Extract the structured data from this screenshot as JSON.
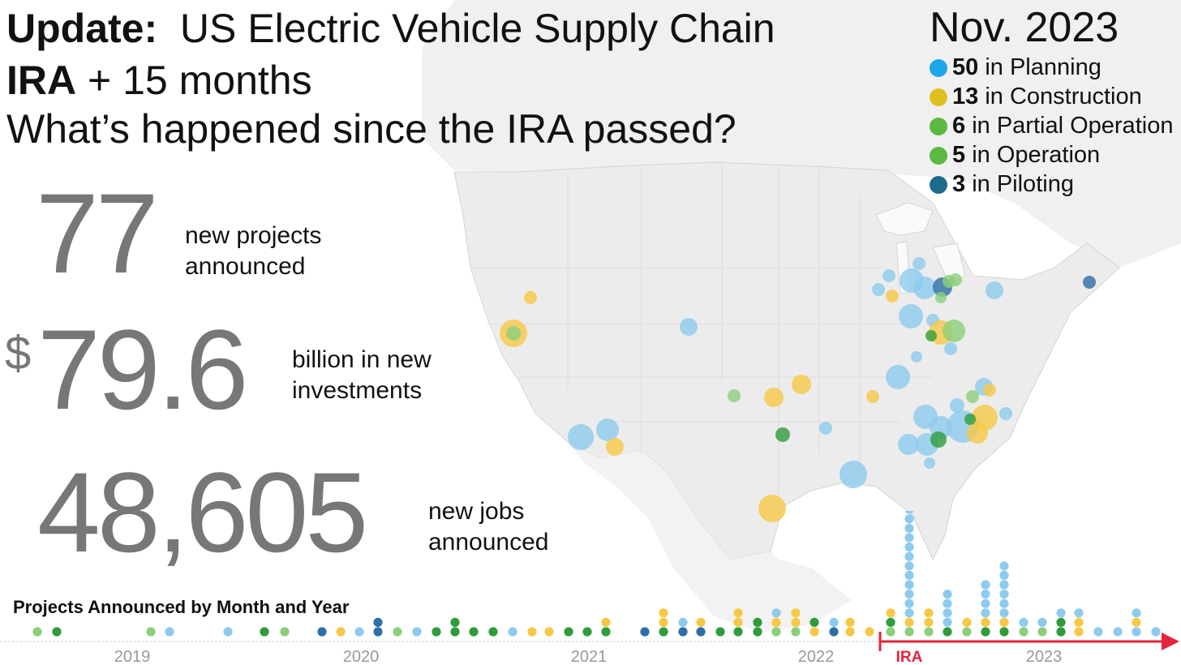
{
  "header": {
    "line1_bold": "Update:",
    "line1_rest": "US Electric Vehicle Supply Chain",
    "line2_bold": "IRA",
    "line2_rest": "+ 15 months",
    "line3": "What’s happened since the IRA passed?",
    "date": "Nov. 2023"
  },
  "legend": {
    "items": [
      {
        "count": "50",
        "label": "in Planning",
        "color": "#1ea7e8"
      },
      {
        "count": "13",
        "label": "in Construction",
        "color": "#e0c020"
      },
      {
        "count": "6",
        "label": "in Partial Operation",
        "color": "#5bb840"
      },
      {
        "count": "5",
        "label": "in Operation",
        "color": "#5bb840"
      },
      {
        "count": "3",
        "label": "in Piloting",
        "color": "#1e6a8c"
      }
    ]
  },
  "stats": {
    "projects_value": "77",
    "projects_label_1": "new projects",
    "projects_label_2": "announced",
    "currency_symbol": "$",
    "investment_value": "79.6",
    "investment_label_1": "billion in new",
    "investment_label_2": "investments",
    "jobs_value": "48,605",
    "jobs_label_1": "new jobs",
    "jobs_label_2": "announced"
  },
  "timeline": {
    "title": "Projects Announced by Month and Year",
    "years": [
      "2019",
      "2020",
      "2021",
      "2022",
      "2023"
    ],
    "ira_label": "IRA"
  },
  "colors": {
    "planning": "#8dcbee",
    "construction": "#f7c846",
    "partial": "#8ccf7a",
    "operation": "#2f9c3b",
    "piloting": "#2d6fa6",
    "ira_red": "#e3243b",
    "bignum_gray": "#777777"
  }
}
